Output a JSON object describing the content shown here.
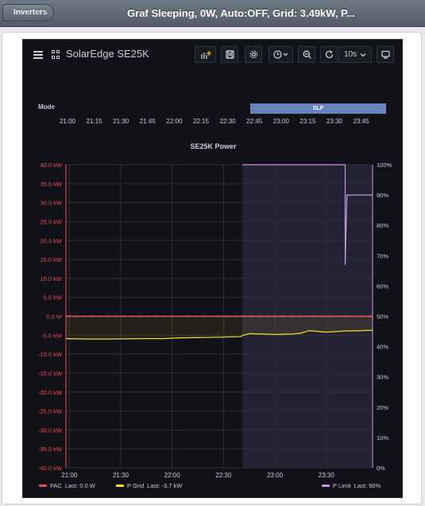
{
  "header": {
    "back_label": "Inverters",
    "title": "Graf Sleeping, 0W, Auto:OFF, Grid: 3.49kW, P..."
  },
  "dashboard": {
    "title": "SolarEdge SE25K",
    "refresh_interval": "10s",
    "icons": [
      "menu-icon",
      "dashboards-icon",
      "add-panel-icon",
      "save-icon",
      "settings-icon",
      "time-picker-icon",
      "zoom-out-icon",
      "refresh-icon",
      "tv-mode-icon"
    ]
  },
  "mode_panel": {
    "label": "Mode",
    "state_label": "SLP",
    "state_color": "#6884be",
    "x_ticks": [
      "21:00",
      "21:15",
      "21:30",
      "21:45",
      "22:00",
      "22:15",
      "22:30",
      "22:45",
      "23:00",
      "23:15",
      "23:30",
      "23:45"
    ]
  },
  "chart_data": {
    "type": "line",
    "title": "SE25K Power",
    "x_ticks": [
      "21:00",
      "21:30",
      "22:00",
      "22:30",
      "23:00",
      "23:30"
    ],
    "y_left_ticks": [
      "40.0 kW",
      "35.0 kW",
      "30.0 kW",
      "25.0 kW",
      "20.0 kW",
      "15.0 kW",
      "10.0 kW",
      "5.0 kW",
      "0.0 W",
      "-5.0 kW",
      "-10.0 kW",
      "-15.0 kW",
      "-20.0 kW",
      "-25.0 kW",
      "-30.0 kW",
      "-35.0 kW",
      "-40.0 kW"
    ],
    "y_right_ticks": [
      "100%",
      "90%",
      "80%",
      "70%",
      "60%",
      "50%",
      "40%",
      "30%",
      "20%",
      "10%",
      "0%"
    ],
    "ylim_left": [
      -40,
      40
    ],
    "ylim_right": [
      0,
      100
    ],
    "x_range": [
      "20:58",
      "23:57"
    ],
    "shaded_region": [
      "22:41",
      "23:57"
    ],
    "series": [
      {
        "name": "PAC",
        "color": "#f2495c",
        "axis": "left",
        "x": [
          "20:58",
          "22:41",
          "22:41",
          "23:57"
        ],
        "values": [
          0.0,
          0.0,
          0.0,
          0.0
        ]
      },
      {
        "name": "P Grid",
        "color": "#fade2a",
        "axis": "left",
        "x": [
          "20:58",
          "21:10",
          "21:25",
          "21:40",
          "21:55",
          "22:05",
          "22:20",
          "22:30",
          "22:40",
          "22:41",
          "22:45",
          "23:00",
          "23:10",
          "23:15",
          "23:20",
          "23:30",
          "23:40",
          "23:50",
          "23:57"
        ],
        "values": [
          -5.9,
          -6.0,
          -6.0,
          -5.9,
          -5.9,
          -5.7,
          -5.6,
          -5.5,
          -5.4,
          -5.1,
          -4.6,
          -4.8,
          -4.7,
          -4.5,
          -3.8,
          -4.2,
          -3.9,
          -3.8,
          -3.7
        ]
      },
      {
        "name": "P Limit",
        "color": "#ca95e5",
        "axis": "right",
        "x": [
          "22:41",
          "23:41",
          "23:41",
          "23:42",
          "23:42",
          "23:57"
        ],
        "values": [
          100,
          100,
          67,
          90,
          90,
          90
        ]
      }
    ],
    "legend": [
      {
        "name": "PAC",
        "last": "Last: 0.0 W",
        "color": "#f2495c"
      },
      {
        "name": "P Grid",
        "last": "Last: -3.7 kW",
        "color": "#fade2a"
      },
      {
        "name": "P Limit",
        "last": "Last: 90%",
        "color": "#ca95e5"
      }
    ],
    "legend_position": "bottom",
    "grid": true
  }
}
